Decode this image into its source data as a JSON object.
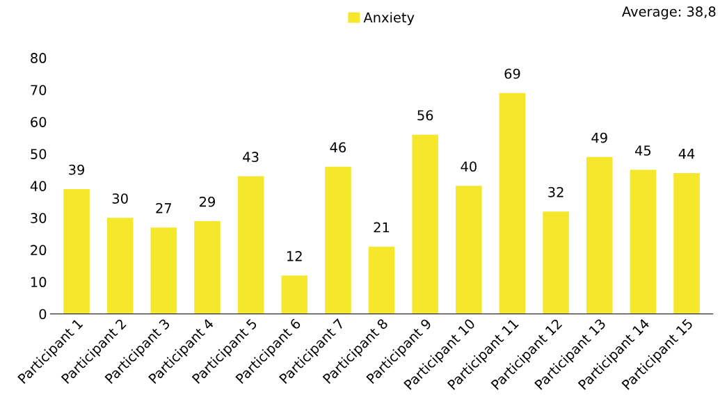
{
  "chart_data": {
    "type": "bar",
    "categories": [
      "Participant 1",
      "Participant 2",
      "Participant 3",
      "Participant 4",
      "Participant 5",
      "Participant 6",
      "Participant 7",
      "Participant 8",
      "Participant 9",
      "Participant 10",
      "Participant 11",
      "Participant 12",
      "Participant 13",
      "Participant 14",
      "Participant 15"
    ],
    "series": [
      {
        "name": "Anxiety",
        "color": "#f5e72c",
        "values": [
          39,
          30,
          27,
          29,
          43,
          12,
          46,
          21,
          56,
          40,
          69,
          32,
          49,
          45,
          44
        ]
      }
    ],
    "ylim": [
      0,
      80
    ],
    "yticks": [
      0,
      10,
      20,
      30,
      40,
      50,
      60,
      70,
      80
    ],
    "data_labels": true,
    "legend": "top",
    "grid": false,
    "annotations": [
      "Average: 38,8"
    ]
  }
}
